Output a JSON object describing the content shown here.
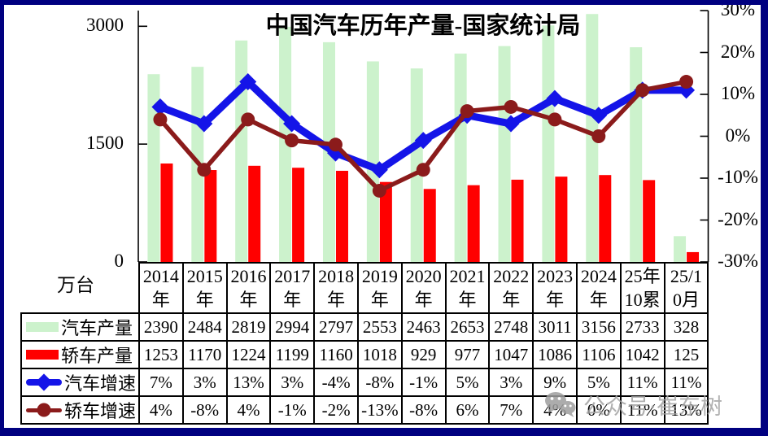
{
  "frame": {
    "border_color": "#000080"
  },
  "chart_data": {
    "type": "combo-bar-line",
    "title": "中国汽车历年产量-国家统计局",
    "grid": false,
    "legend_position": "table-left",
    "categories": [
      "2014\n年",
      "2015\n年",
      "2016\n年",
      "2017\n年",
      "2018\n年",
      "2019\n年",
      "2020\n年",
      "2021\n年",
      "2022\n年",
      "2023\n年",
      "2024\n年",
      "25年\n10累",
      "25/1\n0月"
    ],
    "left_axis": {
      "label": "万台",
      "ticks": [
        "3000",
        "1500",
        "0"
      ],
      "tick_values": [
        3000,
        1500,
        0
      ],
      "min": 0,
      "max": 3200
    },
    "right_axis": {
      "ticks": [
        "30%",
        "20%",
        "10%",
        "0%",
        "-10%",
        "-20%",
        "-30%"
      ],
      "tick_values": [
        30,
        20,
        10,
        0,
        -10,
        -20,
        -30
      ],
      "min": -30,
      "max": 30
    },
    "series": [
      {
        "id": "auto-production",
        "name": "汽车产量",
        "type": "bar",
        "axis": "left",
        "color": "#ccf2cc",
        "values": [
          2390,
          2484,
          2819,
          2994,
          2797,
          2553,
          2463,
          2653,
          2748,
          3011,
          3156,
          2733,
          328
        ]
      },
      {
        "id": "sedan-production",
        "name": "轿车产量",
        "type": "bar",
        "axis": "left",
        "color": "#ff0000",
        "values": [
          1253,
          1170,
          1224,
          1199,
          1160,
          1018,
          929,
          977,
          1047,
          1086,
          1106,
          1042,
          125
        ]
      },
      {
        "id": "auto-growth",
        "name": "汽车增速",
        "type": "line",
        "marker": "diamond",
        "axis": "right",
        "color": "#1414e8",
        "values": [
          7,
          3,
          13,
          3,
          -4,
          -8,
          -1,
          5,
          3,
          9,
          5,
          11,
          11
        ]
      },
      {
        "id": "sedan-growth",
        "name": "轿车增速",
        "type": "line",
        "marker": "circle",
        "axis": "right",
        "color": "#8b1b1b",
        "values": [
          4,
          -8,
          4,
          -1,
          -2,
          -13,
          -8,
          6,
          7,
          4,
          0,
          11,
          13
        ]
      }
    ]
  },
  "watermark": {
    "icon": "wechat-icon",
    "text": "公众号·崔东树"
  }
}
